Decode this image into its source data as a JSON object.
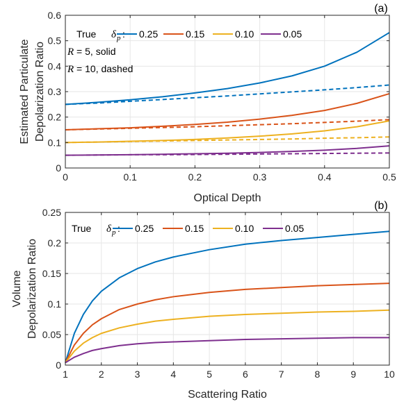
{
  "chart_data": [
    {
      "type": "line",
      "panel_label": "(a)",
      "xlabel": "Optical Depth",
      "ylabel": [
        "Estimated Particulate",
        "Depolarization Ratio"
      ],
      "xlim": [
        0,
        0.5
      ],
      "ylim": [
        0,
        0.6
      ],
      "xticks": [
        0,
        0.1,
        0.2,
        0.3,
        0.4,
        0.5
      ],
      "xtick_labels": [
        "0",
        "0.1",
        "0.2",
        "0.3",
        "0.4",
        "0.5"
      ],
      "yticks": [
        0,
        0.1,
        0.2,
        0.3,
        0.4,
        0.5,
        0.6
      ],
      "ytick_labels": [
        "0",
        "0.1",
        "0.2",
        "0.3",
        "0.4",
        "0.5",
        "0.6"
      ],
      "grid": true,
      "legend": {
        "position": "top",
        "title_prefix": "True",
        "title_symbol": "δ",
        "title_sub": "p",
        "title_suffix": ":",
        "entries": [
          "0.25",
          "0.15",
          "0.10",
          "0.05"
        ]
      },
      "annotations": [
        {
          "var": "R",
          "text": " = 5, solid"
        },
        {
          "var": "R",
          "text": " = 10, dashed"
        }
      ],
      "x": [
        0,
        0.05,
        0.1,
        0.15,
        0.2,
        0.25,
        0.3,
        0.35,
        0.4,
        0.45,
        0.5
      ],
      "series": [
        {
          "name": "0.25",
          "style": "solid",
          "color": "#0072BD",
          "values": [
            0.25,
            0.258,
            0.268,
            0.28,
            0.295,
            0.312,
            0.334,
            0.362,
            0.4,
            0.455,
            0.532
          ]
        },
        {
          "name": "0.25",
          "style": "dashed",
          "color": "#0072BD",
          "values": [
            0.25,
            0.255,
            0.262,
            0.269,
            0.276,
            0.283,
            0.291,
            0.299,
            0.307,
            0.316,
            0.326
          ]
        },
        {
          "name": "0.15",
          "style": "solid",
          "color": "#D95319",
          "values": [
            0.15,
            0.154,
            0.158,
            0.164,
            0.171,
            0.18,
            0.192,
            0.207,
            0.226,
            0.254,
            0.292
          ]
        },
        {
          "name": "0.15",
          "style": "dashed",
          "color": "#D95319",
          "values": [
            0.15,
            0.153,
            0.156,
            0.159,
            0.162,
            0.166,
            0.17,
            0.174,
            0.179,
            0.184,
            0.19
          ]
        },
        {
          "name": "0.10",
          "style": "solid",
          "color": "#EDB120",
          "values": [
            0.1,
            0.102,
            0.105,
            0.108,
            0.112,
            0.118,
            0.125,
            0.134,
            0.146,
            0.162,
            0.185
          ]
        },
        {
          "name": "0.10",
          "style": "dashed",
          "color": "#EDB120",
          "values": [
            0.1,
            0.102,
            0.104,
            0.106,
            0.108,
            0.11,
            0.112,
            0.114,
            0.117,
            0.119,
            0.122
          ]
        },
        {
          "name": "0.05",
          "style": "solid",
          "color": "#7E2F8E",
          "values": [
            0.05,
            0.051,
            0.052,
            0.054,
            0.056,
            0.058,
            0.061,
            0.065,
            0.07,
            0.077,
            0.087
          ]
        },
        {
          "name": "0.05",
          "style": "dashed",
          "color": "#7E2F8E",
          "values": [
            0.05,
            0.051,
            0.052,
            0.052,
            0.053,
            0.054,
            0.055,
            0.056,
            0.057,
            0.058,
            0.059
          ]
        }
      ]
    },
    {
      "type": "line",
      "panel_label": "(b)",
      "xlabel": "Scattering Ratio",
      "ylabel": [
        "Volume",
        "Depolarization Ratio"
      ],
      "xlim": [
        1,
        10
      ],
      "ylim": [
        0,
        0.25
      ],
      "xticks": [
        1,
        2,
        3,
        4,
        5,
        6,
        7,
        8,
        9,
        10
      ],
      "xtick_labels": [
        "1",
        "2",
        "3",
        "4",
        "5",
        "6",
        "7",
        "8",
        "9",
        "10"
      ],
      "yticks": [
        0,
        0.05,
        0.1,
        0.15,
        0.2,
        0.25
      ],
      "ytick_labels": [
        "0",
        "0.05",
        "0.1",
        "0.15",
        "0.2",
        "0.25"
      ],
      "grid": true,
      "legend": {
        "position": "top",
        "title_prefix": "True",
        "title_symbol": "δ",
        "title_sub": "p",
        "title_suffix": ":",
        "entries": [
          "0.25",
          "0.15",
          "0.10",
          "0.05"
        ]
      },
      "x": [
        1,
        1.25,
        1.5,
        1.75,
        2,
        2.5,
        3,
        3.5,
        4,
        5,
        6,
        7,
        8,
        9,
        10
      ],
      "series": [
        {
          "name": "0.25",
          "style": "solid",
          "color": "#0072BD",
          "values": [
            0.004,
            0.052,
            0.083,
            0.105,
            0.121,
            0.143,
            0.158,
            0.169,
            0.177,
            0.189,
            0.198,
            0.204,
            0.209,
            0.214,
            0.219
          ]
        },
        {
          "name": "0.15",
          "style": "solid",
          "color": "#D95319",
          "values": [
            0.004,
            0.033,
            0.052,
            0.066,
            0.076,
            0.091,
            0.1,
            0.107,
            0.112,
            0.119,
            0.124,
            0.127,
            0.13,
            0.132,
            0.134
          ]
        },
        {
          "name": "0.10",
          "style": "solid",
          "color": "#EDB120",
          "values": [
            0.004,
            0.023,
            0.036,
            0.045,
            0.052,
            0.061,
            0.067,
            0.072,
            0.075,
            0.08,
            0.083,
            0.085,
            0.087,
            0.088,
            0.09
          ]
        },
        {
          "name": "0.05",
          "style": "solid",
          "color": "#7E2F8E",
          "values": [
            0.004,
            0.013,
            0.019,
            0.024,
            0.027,
            0.032,
            0.035,
            0.037,
            0.038,
            0.04,
            0.042,
            0.043,
            0.044,
            0.045,
            0.045
          ]
        }
      ]
    }
  ]
}
